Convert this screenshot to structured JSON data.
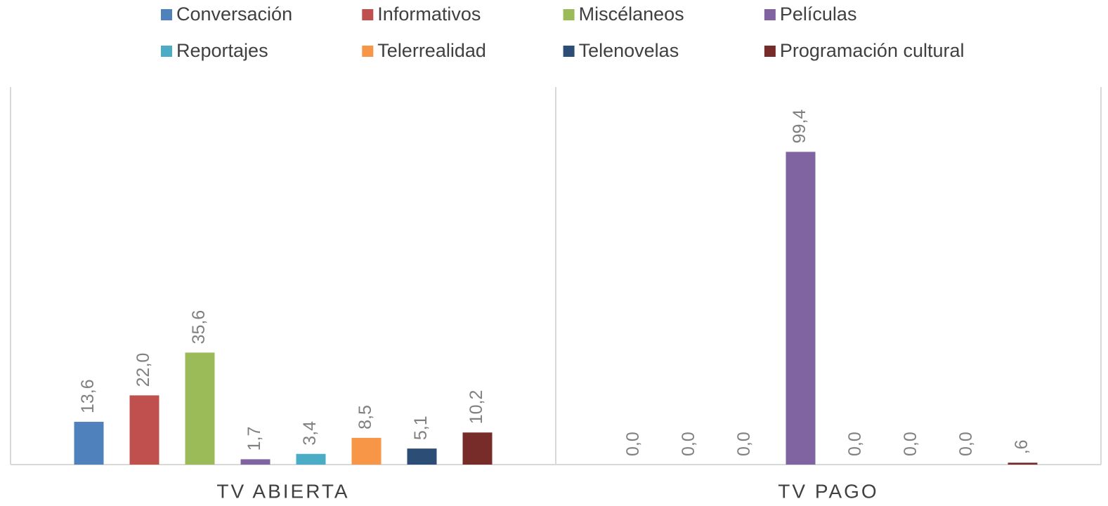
{
  "chart_data": {
    "type": "bar",
    "categories": [
      "TV ABIERTA",
      "TV PAGO"
    ],
    "ylim": [
      0,
      120
    ],
    "legend": "top",
    "series": [
      {
        "name": "Conversación",
        "color": "#4f81bd",
        "values": [
          13.6,
          0.0
        ],
        "value_labels": [
          "13,6",
          "0,0"
        ]
      },
      {
        "name": "Informativos",
        "color": "#c0504d",
        "values": [
          22.0,
          0.0
        ],
        "value_labels": [
          "22,0",
          "0,0"
        ]
      },
      {
        "name": "Miscélaneos",
        "color": "#9bbb59",
        "values": [
          35.6,
          0.0
        ],
        "value_labels": [
          "35,6",
          "0,0"
        ]
      },
      {
        "name": "Películas",
        "color": "#8064a2",
        "values": [
          1.7,
          99.4
        ],
        "value_labels": [
          "1,7",
          "99,4"
        ]
      },
      {
        "name": "Reportajes",
        "color": "#4bacc6",
        "values": [
          3.4,
          0.0
        ],
        "value_labels": [
          "3,4",
          "0,0"
        ]
      },
      {
        "name": "Telerrealidad",
        "color": "#f79646",
        "values": [
          8.5,
          0.0
        ],
        "value_labels": [
          "8,5",
          "0,0"
        ]
      },
      {
        "name": "Telenovelas",
        "color": "#2c4d75",
        "values": [
          5.1,
          0.0
        ],
        "value_labels": [
          "5,1",
          "0,0"
        ]
      },
      {
        "name": "Programación cultural",
        "color": "#772c2a",
        "values": [
          10.2,
          0.6
        ],
        "value_labels": [
          "10,2",
          ",6"
        ]
      }
    ]
  }
}
